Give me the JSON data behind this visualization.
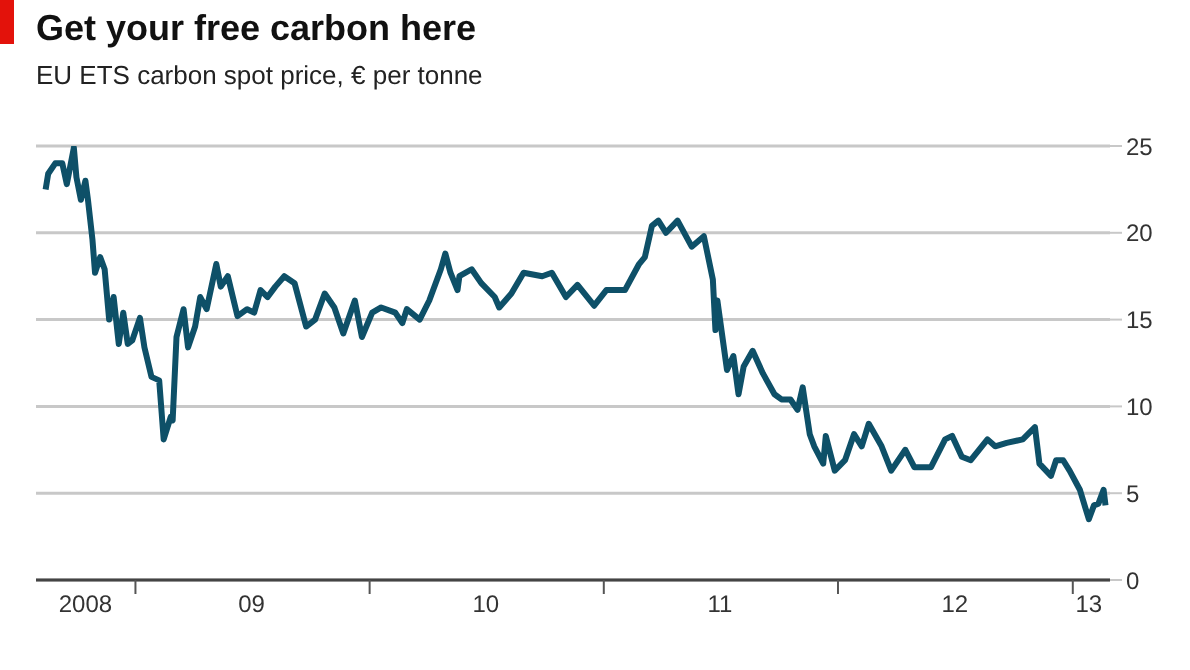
{
  "chart_data": {
    "type": "line",
    "title": "Get your free carbon here",
    "subtitle": "EU ETS carbon spot price, € per tonne",
    "x": [
      "2008-08-14",
      "2008-08-18",
      "2008-08-29",
      "2008-09-09",
      "2008-09-16",
      "2008-09-27",
      "2008-10-01",
      "2008-10-08",
      "2008-10-15",
      "2008-10-19",
      "2008-10-26",
      "2008-10-30",
      "2008-11-07",
      "2008-11-14",
      "2008-11-21",
      "2008-11-28",
      "2008-12-06",
      "2008-12-13",
      "2008-12-20",
      "2008-12-27",
      "2009-01-08",
      "2009-01-15",
      "2009-01-26",
      "2009-02-07",
      "2009-02-14",
      "2009-02-25",
      "2009-02-28",
      "2009-03-06",
      "2009-03-17",
      "2009-03-24",
      "2009-04-04",
      "2009-04-12",
      "2009-04-22",
      "2009-05-07",
      "2009-05-14",
      "2009-05-25",
      "2009-06-09",
      "2009-06-24",
      "2009-07-05",
      "2009-07-15",
      "2009-07-26",
      "2009-08-07",
      "2009-08-21",
      "2009-09-06",
      "2009-09-24",
      "2009-10-08",
      "2009-10-23",
      "2009-11-07",
      "2009-11-21",
      "2009-12-09",
      "2009-12-20",
      "2010-01-05",
      "2010-01-19",
      "2010-02-10",
      "2010-02-21",
      "2010-02-28",
      "2010-03-20",
      "2010-04-04",
      "2010-04-22",
      "2010-04-29",
      "2010-05-07",
      "2010-05-18",
      "2010-05-21",
      "2010-06-09",
      "2010-06-24",
      "2010-07-15",
      "2010-07-22",
      "2010-08-10",
      "2010-08-29",
      "2010-09-27",
      "2010-10-12",
      "2010-11-03",
      "2010-11-21",
      "2010-12-17",
      "2011-01-05",
      "2011-02-03",
      "2011-02-25",
      "2011-03-06",
      "2011-03-17",
      "2011-03-27",
      "2011-04-08",
      "2011-04-26",
      "2011-05-18",
      "2011-06-06",
      "2011-06-20",
      "2011-06-24",
      "2011-06-27",
      "2011-07-12",
      "2011-07-22",
      "2011-07-30",
      "2011-08-07",
      "2011-08-21",
      "2011-09-06",
      "2011-09-24",
      "2011-10-05",
      "2011-10-19",
      "2011-10-30",
      "2011-11-07",
      "2011-11-18",
      "2011-11-25",
      "2011-12-09",
      "2011-12-13",
      "2011-12-27",
      "2012-01-12",
      "2012-01-26",
      "2012-02-07",
      "2012-02-18",
      "2012-03-09",
      "2012-03-24",
      "2012-04-15",
      "2012-04-29",
      "2012-05-25",
      "2012-06-16",
      "2012-06-27",
      "2012-07-12",
      "2012-07-26",
      "2012-08-21",
      "2012-09-02",
      "2012-09-20",
      "2012-10-15",
      "2012-11-03",
      "2012-11-10",
      "2012-11-28",
      "2012-12-06",
      "2012-12-17",
      "2012-12-27",
      "2013-01-12",
      "2013-01-26",
      "2013-02-03",
      "2013-02-10",
      "2013-02-18",
      "2013-02-21"
    ],
    "values": [
      22.5,
      23.4,
      24.0,
      24.0,
      22.8,
      24.9,
      23.2,
      21.9,
      23.0,
      21.9,
      19.6,
      17.7,
      18.6,
      17.9,
      15.0,
      16.3,
      13.6,
      15.4,
      13.6,
      13.8,
      15.1,
      13.4,
      11.7,
      11.5,
      8.1,
      9.4,
      9.2,
      14.0,
      15.6,
      13.4,
      14.6,
      16.3,
      15.6,
      18.2,
      16.9,
      17.5,
      15.2,
      15.6,
      15.4,
      16.7,
      16.3,
      16.9,
      17.5,
      17.1,
      14.6,
      15.0,
      16.5,
      15.7,
      14.2,
      16.1,
      14.0,
      15.4,
      15.7,
      15.4,
      14.8,
      15.6,
      15.0,
      16.1,
      17.9,
      18.8,
      17.7,
      16.7,
      17.5,
      17.9,
      17.1,
      16.3,
      15.7,
      16.5,
      17.7,
      17.5,
      17.7,
      16.3,
      17.0,
      15.8,
      16.7,
      16.7,
      18.2,
      18.6,
      20.4,
      20.7,
      20.0,
      20.7,
      19.2,
      19.8,
      17.3,
      14.4,
      16.1,
      12.1,
      12.9,
      10.7,
      12.3,
      13.2,
      11.9,
      10.7,
      10.4,
      10.4,
      9.8,
      11.1,
      8.4,
      7.7,
      6.7,
      8.3,
      6.3,
      6.9,
      8.4,
      7.7,
      9.0,
      7.7,
      6.3,
      7.5,
      6.5,
      6.5,
      8.1,
      8.3,
      7.1,
      6.9,
      8.1,
      7.7,
      7.9,
      8.1,
      8.8,
      6.7,
      6.0,
      6.9,
      6.9,
      6.3,
      5.2,
      3.5,
      4.3,
      4.4,
      5.2,
      4.3
    ],
    "color": "#0e5068",
    "xlim": [
      "2008-07-30",
      "2013-02-28"
    ],
    "xticks": [
      {
        "value": "2008-10-15",
        "label": "2008"
      },
      {
        "value": "2009-01-01",
        "label": null
      },
      {
        "value": "2009-07-01",
        "label": "09"
      },
      {
        "value": "2010-01-01",
        "label": null
      },
      {
        "value": "2010-07-01",
        "label": "10"
      },
      {
        "value": "2011-01-01",
        "label": null
      },
      {
        "value": "2011-07-01",
        "label": "11"
      },
      {
        "value": "2012-01-01",
        "label": null
      },
      {
        "value": "2012-07-01",
        "label": "12"
      },
      {
        "value": "2013-01-01",
        "label": null
      },
      {
        "value": "2013-01-26",
        "label": "13"
      }
    ],
    "ylim": [
      0,
      25
    ],
    "yticks": [
      0,
      5,
      10,
      15,
      20,
      25
    ],
    "grid": "y",
    "line_style": "solid"
  }
}
